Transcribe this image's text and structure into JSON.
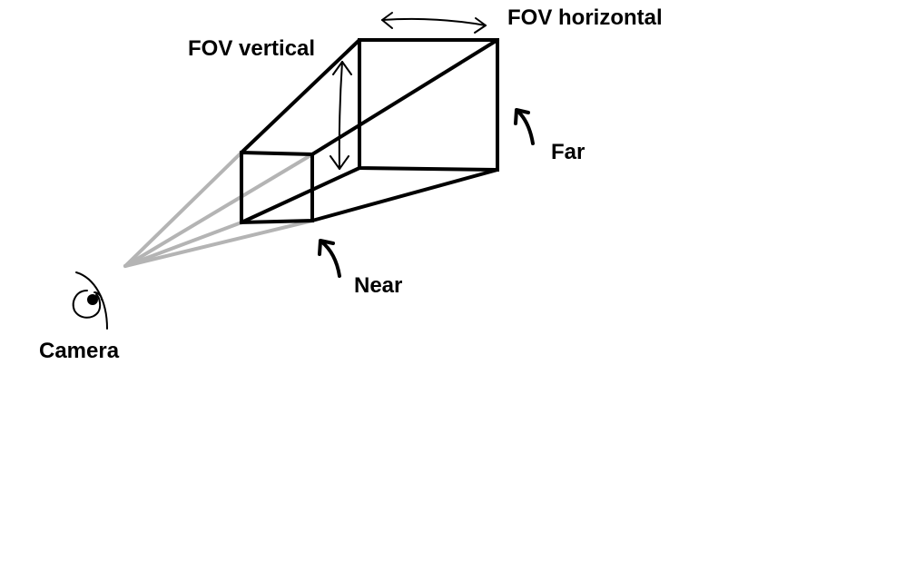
{
  "labels": {
    "fov_horizontal": "FOV horizontal",
    "fov_vertical": "FOV vertical",
    "far": "Far",
    "near": "Near",
    "camera": "Camera"
  },
  "colors": {
    "ink": "#000000",
    "sight_lines": "#b4b4b4",
    "background": "#ffffff"
  },
  "icons": {
    "camera": "eye-icon"
  }
}
